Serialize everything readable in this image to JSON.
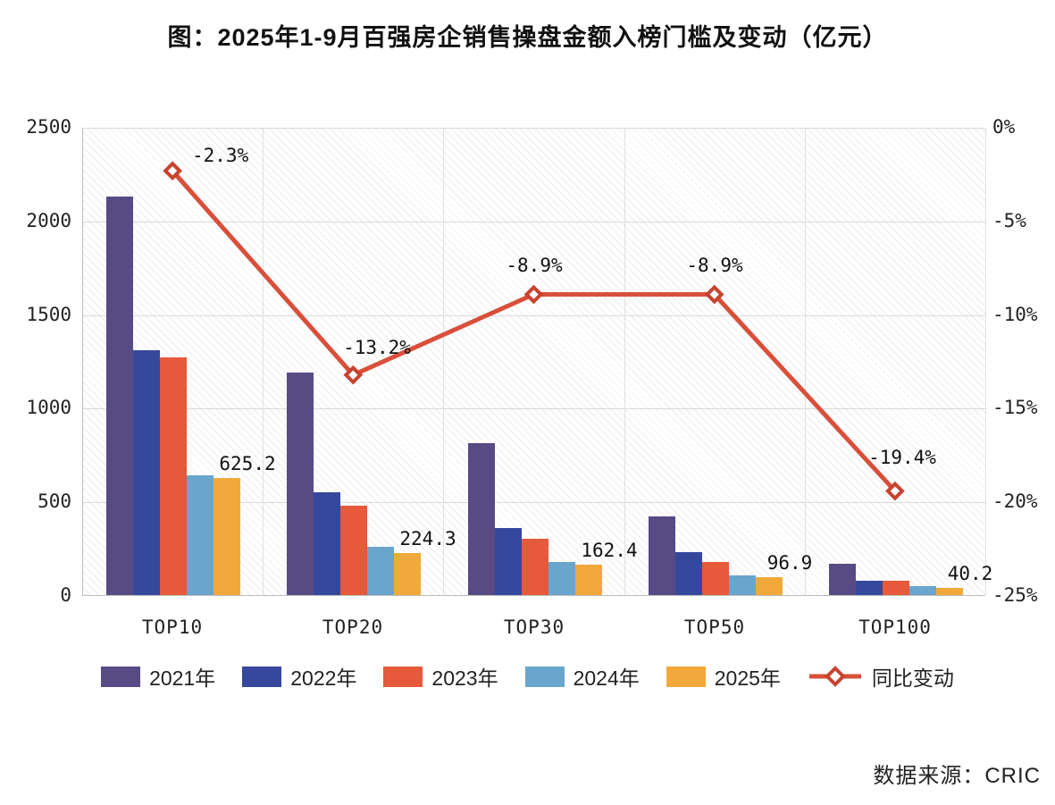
{
  "title": "图：2025年1-9月百强房企销售操盘金额入榜门槛及变动（亿元）",
  "source_note": "数据来源：CRIC",
  "chart_data": {
    "type": "bar",
    "subtype": "grouped bars with line on secondary axis",
    "title": "图：2025年1-9月百强房企销售操盘金额入榜门槛及变动（亿元）",
    "categories": [
      "TOP10",
      "TOP20",
      "TOP30",
      "TOP50",
      "TOP100"
    ],
    "bar_series": [
      {
        "name": "2021年",
        "color": "#584a85",
        "values": [
          2130,
          1190,
          810,
          420,
          168
        ]
      },
      {
        "name": "2022年",
        "color": "#35489c",
        "values": [
          1308,
          550,
          358,
          228,
          74
        ]
      },
      {
        "name": "2023年",
        "color": "#e6593a",
        "values": [
          1270,
          478,
          300,
          178,
          78
        ]
      },
      {
        "name": "2024年",
        "color": "#6aa5cd",
        "values": [
          640,
          258,
          178,
          106,
          50
        ]
      },
      {
        "name": "2025年",
        "color": "#f1a93c",
        "values": [
          625.2,
          224.3,
          162.4,
          96.9,
          40.2
        ],
        "value_labels": [
          "625.2",
          "224.3",
          "162.4",
          "96.9",
          "40.2"
        ]
      }
    ],
    "line_series": {
      "name": "同比变动",
      "color": "#d94f3a",
      "marker": "diamond-open",
      "axis": "right",
      "values": [
        -2.3,
        -13.2,
        -8.9,
        -8.9,
        -19.4
      ],
      "labels": [
        "-2.3%",
        "-13.2%",
        "-8.9%",
        "-8.9%",
        "-19.4%"
      ],
      "label_offsets": [
        [
          22,
          -29,
          "left"
        ],
        [
          27,
          -43,
          "center"
        ],
        [
          0,
          -45,
          "center"
        ],
        [
          0,
          -45,
          "center"
        ],
        [
          8,
          -50,
          "center"
        ]
      ]
    },
    "left_axis": {
      "min": 0,
      "max": 2500,
      "tick_step": 500,
      "ticks": [
        "0",
        "500",
        "1000",
        "1500",
        "2000",
        "2500"
      ]
    },
    "right_axis": {
      "min": -25,
      "max": 0,
      "tick_step": 5,
      "ticks": [
        "0%",
        "-5%",
        "-10%",
        "-15%",
        "-20%",
        "-25%"
      ]
    },
    "grid": true,
    "legend_position": "bottom",
    "plot_background": "diagonal-hatch"
  }
}
